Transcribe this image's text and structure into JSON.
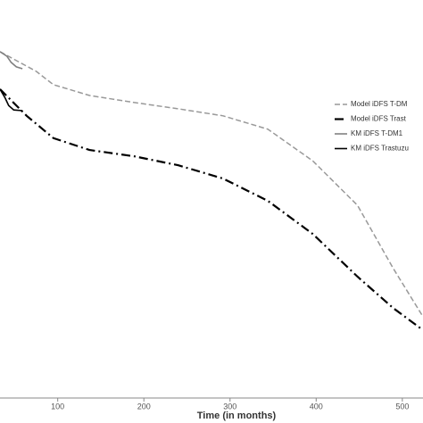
{
  "chart_data": {
    "type": "line",
    "x_label": "Time (in months)",
    "xlim": [
      33,
      524
    ],
    "ylim": [
      0,
      1
    ],
    "xticks": [
      100,
      200,
      300,
      400,
      500
    ],
    "series": [
      {
        "name": "Model iDFS T-DM",
        "color": "#999999",
        "style": "dashed",
        "x": [
          33,
          75,
          95,
          137,
          189,
          240,
          292,
          344,
          396,
          448,
          489,
          524
        ],
        "values": [
          0.933,
          0.88,
          0.844,
          0.815,
          0.796,
          0.779,
          0.76,
          0.724,
          0.639,
          0.519,
          0.351,
          0.219
        ]
      },
      {
        "name": "Model iDFS Trast",
        "color": "#000000",
        "style": "dashdot",
        "x": [
          33,
          64,
          95,
          137,
          189,
          240,
          292,
          344,
          396,
          448,
          489,
          524
        ],
        "values": [
          0.832,
          0.76,
          0.7,
          0.668,
          0.651,
          0.627,
          0.591,
          0.531,
          0.442,
          0.327,
          0.243,
          0.183
        ]
      },
      {
        "name": "KM iDFS T-DM1",
        "color": "#808080",
        "style": "step",
        "x": [
          33,
          41,
          46,
          52,
          59
        ],
        "values": [
          0.933,
          0.921,
          0.904,
          0.892,
          0.887
        ]
      },
      {
        "name": "KM iDFS Trastuzu",
        "color": "#000000",
        "style": "step",
        "x": [
          33,
          39,
          43,
          49,
          59
        ],
        "values": [
          0.832,
          0.808,
          0.788,
          0.776,
          0.774
        ]
      }
    ]
  }
}
